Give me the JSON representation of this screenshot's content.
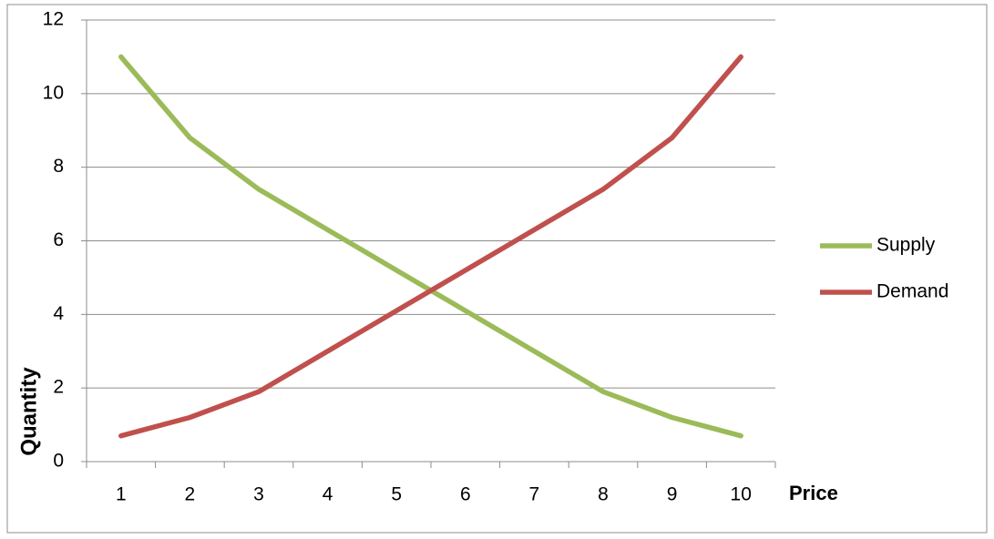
{
  "chart_data": {
    "type": "line",
    "x_label": "Price",
    "y_label": "Quantity",
    "categories": [
      "1",
      "2",
      "3",
      "4",
      "5",
      "6",
      "7",
      "8",
      "9",
      "10"
    ],
    "series": [
      {
        "name": "Supply",
        "color": "#9bbb59",
        "values": [
          11,
          8.8,
          7.4,
          6.3,
          5.2,
          4.1,
          3.0,
          1.9,
          1.2,
          0.7
        ]
      },
      {
        "name": "Demand",
        "color": "#c0504d",
        "values": [
          0.7,
          1.2,
          1.9,
          3.0,
          4.1,
          5.2,
          6.3,
          7.4,
          8.8,
          11
        ]
      }
    ],
    "ylim": [
      0,
      12
    ],
    "yticks": [
      0,
      2,
      4,
      6,
      8,
      10,
      12
    ],
    "grid": true,
    "legend": "right"
  }
}
